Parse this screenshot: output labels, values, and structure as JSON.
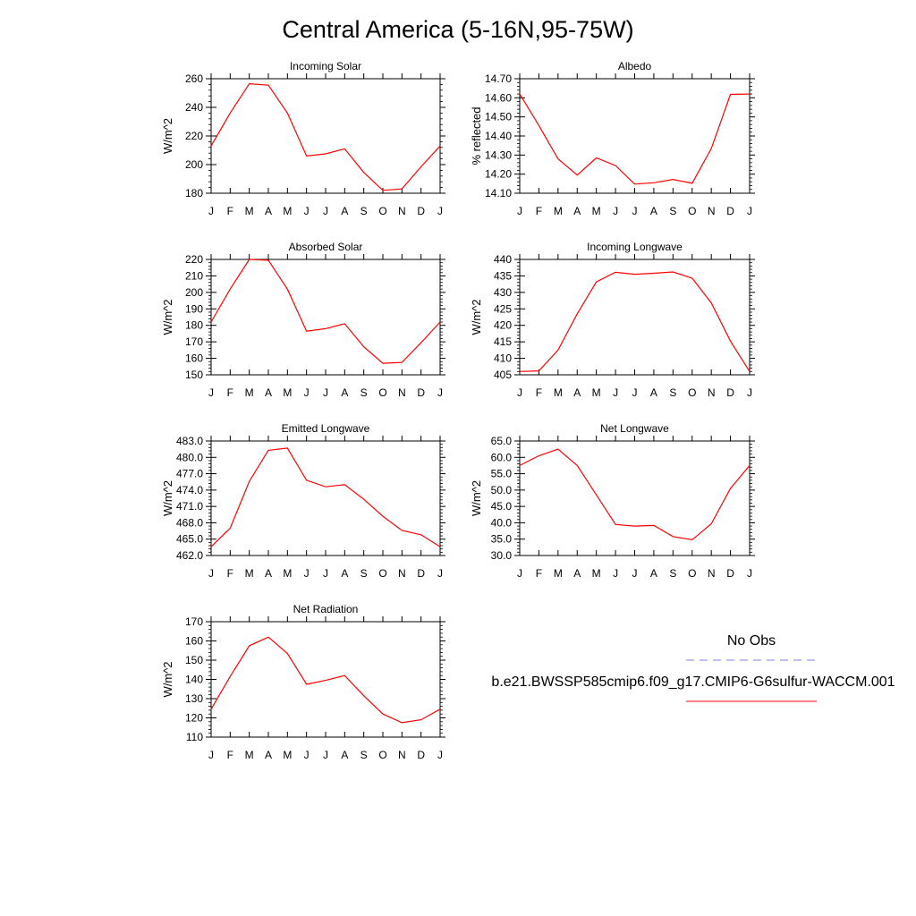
{
  "title": "Central America (5-16N,95-75W)",
  "legend": {
    "entries": [
      {
        "label": "No Obs",
        "color": "#7f7fe0",
        "dash": true
      },
      {
        "label": "b.e21.BWSSP585cmip6.f09_g17.CMIP6-G6sulfur-WACCM.001",
        "color": "#ff0000",
        "dash": false
      }
    ]
  },
  "series_color": "#ff0000",
  "chart_data": [
    {
      "type": "line",
      "title": "Incoming Solar",
      "ylabel": "W/m^2",
      "categories": [
        "J",
        "F",
        "M",
        "A",
        "M",
        "J",
        "J",
        "A",
        "S",
        "O",
        "N",
        "D",
        "J"
      ],
      "ylim": [
        180,
        260
      ],
      "yticks": [
        "260",
        "240",
        "220",
        "200",
        "180"
      ],
      "yticks_values": [
        260,
        240,
        220,
        200,
        180
      ],
      "values": [
        213,
        236,
        256.5,
        255.5,
        236,
        206,
        207.5,
        211,
        194.5,
        182,
        183,
        198.5,
        213
      ]
    },
    {
      "type": "line",
      "title": "Albedo",
      "ylabel": "% reflected",
      "categories": [
        "J",
        "F",
        "M",
        "A",
        "M",
        "J",
        "J",
        "A",
        "S",
        "O",
        "N",
        "D",
        "J"
      ],
      "ylim": [
        14.1,
        14.7
      ],
      "yticks": [
        "14.70",
        "14.60",
        "14.50",
        "14.40",
        "14.30",
        "14.20",
        "14.10"
      ],
      "yticks_values": [
        14.7,
        14.6,
        14.5,
        14.4,
        14.3,
        14.2,
        14.1
      ],
      "values": [
        14.62,
        14.455,
        14.28,
        14.195,
        14.285,
        14.245,
        14.148,
        14.155,
        14.172,
        14.152,
        14.335,
        14.618,
        14.62
      ]
    },
    {
      "type": "line",
      "title": "Absorbed Solar",
      "ylabel": "W/m^2",
      "categories": [
        "J",
        "F",
        "M",
        "A",
        "M",
        "J",
        "J",
        "A",
        "S",
        "O",
        "N",
        "D",
        "J"
      ],
      "ylim": [
        150,
        220
      ],
      "yticks": [
        "220",
        "210",
        "200",
        "190",
        "180",
        "170",
        "160",
        "150"
      ],
      "yticks_values": [
        220,
        210,
        200,
        190,
        180,
        170,
        160,
        150
      ],
      "values": [
        182,
        202,
        220,
        219.5,
        202,
        176.5,
        178,
        181,
        167,
        157,
        157.5,
        169.5,
        182
      ]
    },
    {
      "type": "line",
      "title": "Incoming Longwave",
      "ylabel": "W/m^2",
      "categories": [
        "J",
        "F",
        "M",
        "A",
        "M",
        "J",
        "J",
        "A",
        "S",
        "O",
        "N",
        "D",
        "J"
      ],
      "ylim": [
        405,
        440
      ],
      "yticks": [
        "440",
        "435",
        "430",
        "425",
        "420",
        "415",
        "410",
        "405"
      ],
      "yticks_values": [
        440,
        435,
        430,
        425,
        420,
        415,
        410,
        405
      ],
      "values": [
        406,
        406.2,
        412.5,
        423.5,
        433.2,
        436.1,
        435.5,
        435.8,
        436.2,
        434.3,
        426.8,
        415.2,
        406
      ]
    },
    {
      "type": "line",
      "title": "Emitted Longwave",
      "ylabel": "W/m^2",
      "categories": [
        "J",
        "F",
        "M",
        "A",
        "M",
        "J",
        "J",
        "A",
        "S",
        "O",
        "N",
        "D",
        "J"
      ],
      "ylim": [
        462,
        483
      ],
      "yticks": [
        "483.0",
        "480.0",
        "477.0",
        "474.0",
        "471.0",
        "468.0",
        "465.0",
        "462.0"
      ],
      "yticks_values": [
        483,
        480,
        477,
        474,
        471,
        468,
        465,
        462
      ],
      "values": [
        463.6,
        467,
        475.6,
        481.3,
        481.7,
        475.8,
        474.6,
        475,
        472.3,
        469.2,
        466.6,
        465.8,
        463.6
      ]
    },
    {
      "type": "line",
      "title": "Net Longwave",
      "ylabel": "W/m^2",
      "categories": [
        "J",
        "F",
        "M",
        "A",
        "M",
        "J",
        "J",
        "A",
        "S",
        "O",
        "N",
        "D",
        "J"
      ],
      "ylim": [
        30,
        65
      ],
      "yticks": [
        "65.0",
        "60.0",
        "55.0",
        "50.0",
        "45.0",
        "40.0",
        "35.0",
        "30.0"
      ],
      "yticks_values": [
        65,
        60,
        55,
        50,
        45,
        40,
        35,
        30
      ],
      "values": [
        57.5,
        60.5,
        62.5,
        57.5,
        48.5,
        39.5,
        39,
        39.2,
        35.8,
        34.8,
        39.7,
        50.5,
        57.5
      ]
    },
    {
      "type": "line",
      "title": "Net Radiation",
      "ylabel": "W/m^2",
      "categories": [
        "J",
        "F",
        "M",
        "A",
        "M",
        "J",
        "J",
        "A",
        "S",
        "O",
        "N",
        "D",
        "J"
      ],
      "ylim": [
        110,
        170
      ],
      "yticks": [
        "170",
        "160",
        "150",
        "140",
        "130",
        "120",
        "110"
      ],
      "yticks_values": [
        170,
        160,
        150,
        140,
        130,
        120,
        110
      ],
      "values": [
        124.5,
        141.5,
        157.5,
        162,
        153.5,
        137.5,
        139.5,
        142,
        131.5,
        122,
        117.5,
        119,
        124.5
      ]
    }
  ]
}
